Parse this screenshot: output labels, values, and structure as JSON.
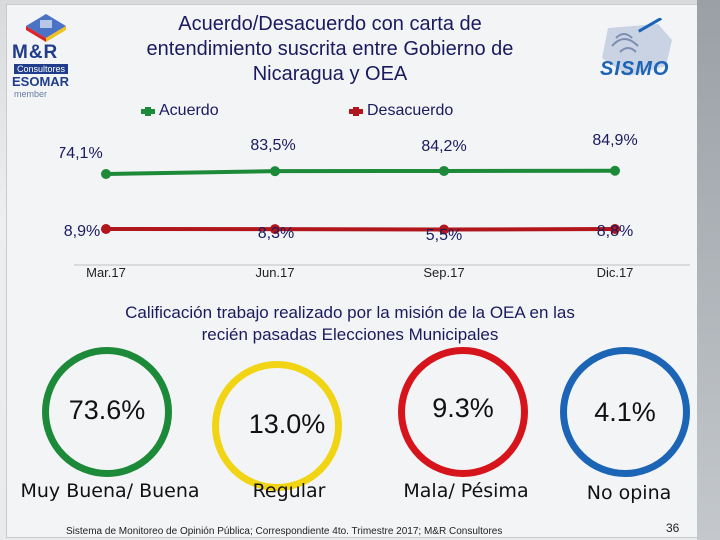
{
  "header": {
    "title_lines": [
      "Acuerdo/Desacuerdo con carta de",
      "entendimiento suscrita entre Gobierno de",
      "Nicaragua y OEA"
    ],
    "logo_left": {
      "brand": "M&R",
      "sub": "Consultores",
      "esomar": "ESOMAR",
      "member": "member"
    },
    "logo_right": {
      "word": "SISMO"
    }
  },
  "chart_data": {
    "type": "line",
    "title": "Acuerdo/Desacuerdo con carta de entendimiento suscrita entre Gobierno de Nicaragua y OEA",
    "categories": [
      "Mar.17",
      "Jun.17",
      "Sep.17",
      "Dic.17"
    ],
    "series": [
      {
        "name": "Acuerdo",
        "values": [
          74.1,
          83.5,
          84.2,
          84.9
        ],
        "labels": [
          "74,1%",
          "83,5%",
          "84,2%",
          "84,9%"
        ],
        "color": "#1d8a3a"
      },
      {
        "name": "Desacuerdo",
        "values": [
          8.9,
          8.3,
          5.5,
          8.8
        ],
        "labels": [
          "8,9%",
          "8,3%",
          "5,5%",
          "8,8%"
        ],
        "color": "#b0161b"
      }
    ],
    "legend_position": "top",
    "grid": false
  },
  "rating": {
    "subtitle_lines": [
      "Calificación  trabajo realizado por la misión de la OEA en las",
      "recién pasadas Elecciones Municipales"
    ],
    "items": [
      {
        "value": "73.6%",
        "label": "Muy Buena/ Buena",
        "color": "#1d8a3a"
      },
      {
        "value": "13.0%",
        "label": "Regular",
        "color": "#f1d515"
      },
      {
        "value": "9.3%",
        "label": "Mala/ Pésima",
        "color": "#d6141c"
      },
      {
        "value": "4.1%",
        "label": "No opina",
        "color": "#1c64b6"
      }
    ]
  },
  "footer": {
    "source": "Sistema de Monitoreo de Opinión Pública; Correspondiente 4to. Trimestre 2017; M&R Consultores",
    "page_number": "36"
  }
}
